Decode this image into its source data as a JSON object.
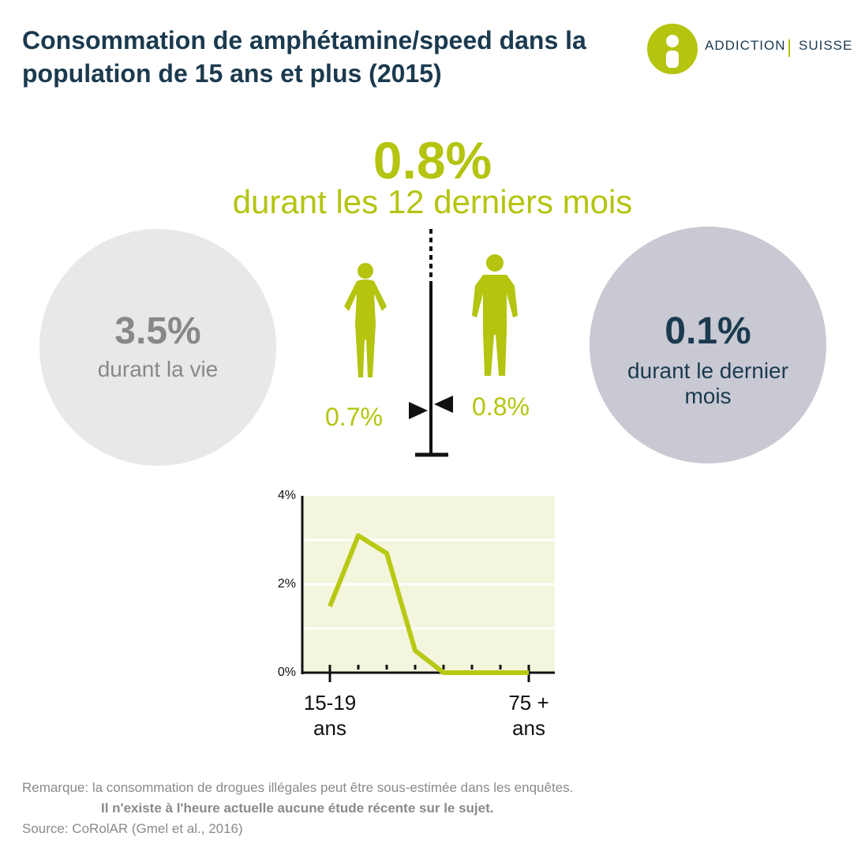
{
  "header": {
    "title": "Consommation de amphétamine/speed dans la population de 15 ans et plus (2015)",
    "logo": [
      "ADDICTION",
      "SUISSE"
    ]
  },
  "main_stat": {
    "value": "0.8%",
    "label": "durant les 12 derniers mois"
  },
  "lifetime": {
    "value": "3.5%",
    "label": "durant la vie"
  },
  "last_month": {
    "value": "0.1%",
    "label": "durant le dernier mois"
  },
  "gender": {
    "values": [
      0.7,
      0.8
    ],
    "value_labels": [
      "0.7%",
      "0.8%"
    ]
  },
  "chart_data": {
    "type": "line",
    "categories": [
      "15-19 ans",
      null,
      null,
      null,
      null,
      null,
      null,
      "75 + ans"
    ],
    "values": [
      1.5,
      3.1,
      2.7,
      0.5,
      0,
      0,
      0,
      0
    ],
    "color": "#b8c914",
    "ylim": [
      0,
      4
    ],
    "yticks": [
      {
        "value": 0,
        "label": "0%"
      },
      {
        "value": 2,
        "label": "2%"
      },
      {
        "value": 4,
        "label": "4%"
      }
    ],
    "grid_values": [
      1,
      2,
      3
    ]
  },
  "footer": {
    "remark": "Remarque: la consommation de drogues illégales peut être sous-estimée dans les enquêtes.",
    "note": "Il n'existe à l'heure actuelle aucune étude récente sur le sujet.",
    "source": "Source: CoRolAR (Gmel et al., 2016)"
  }
}
